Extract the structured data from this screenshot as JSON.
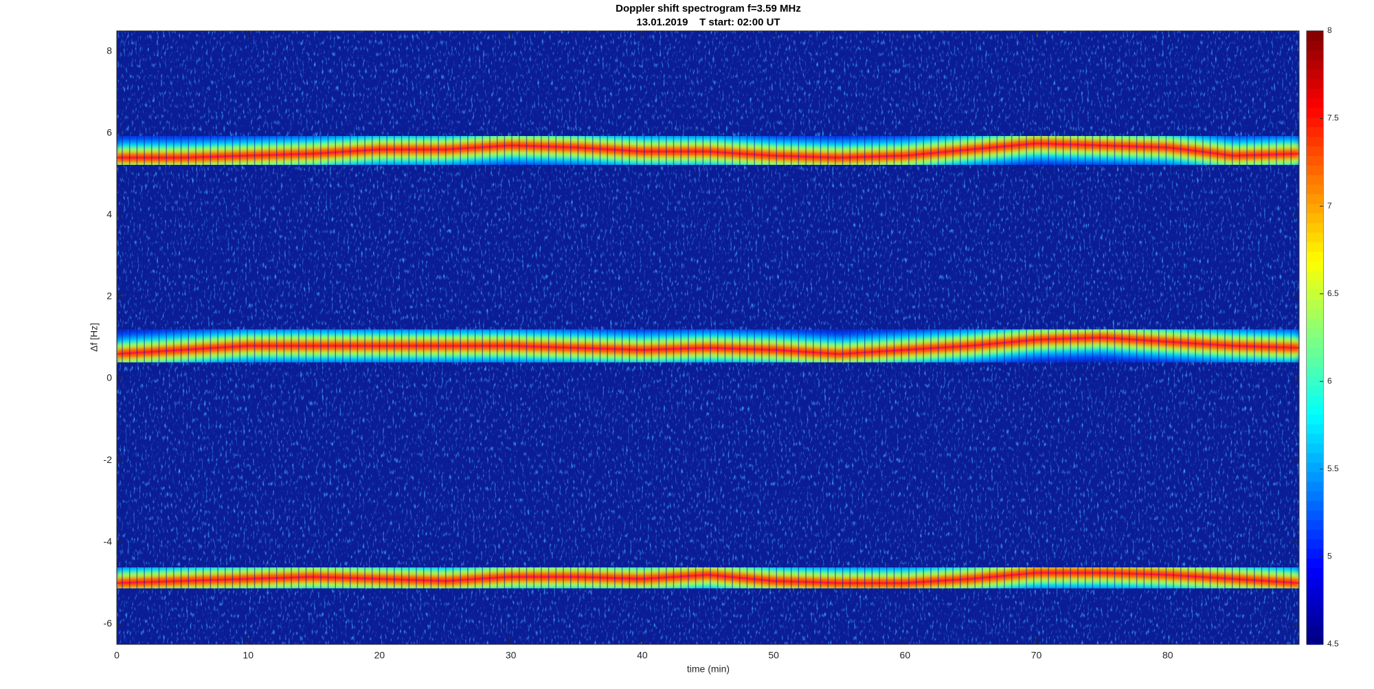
{
  "chart_data": {
    "type": "spectrogram",
    "title": "Doppler shift spectrogram f=3.59 MHz",
    "subtitle": "13.01.2019    T start: 02:00 UT",
    "xlabel": "time (min)",
    "ylabel": "Δf [Hz]",
    "x": [
      0,
      5,
      10,
      15,
      20,
      25,
      30,
      35,
      40,
      45,
      50,
      55,
      60,
      65,
      70,
      75,
      80,
      85,
      90
    ],
    "series": [
      {
        "color": "#ff1a3a",
        "values": [
          5.4,
          5.4,
          5.45,
          5.5,
          5.6,
          5.6,
          5.7,
          5.65,
          5.55,
          5.55,
          5.45,
          5.4,
          5.45,
          5.6,
          5.75,
          5.7,
          5.65,
          5.45,
          5.5
        ]
      },
      {
        "color": "#ff1a3a",
        "values": [
          0.6,
          0.7,
          0.8,
          0.8,
          0.8,
          0.8,
          0.8,
          0.75,
          0.7,
          0.75,
          0.7,
          0.6,
          0.7,
          0.8,
          0.95,
          1.0,
          0.9,
          0.8,
          0.75
        ]
      },
      {
        "color": "#ff1a3a",
        "values": [
          -5.0,
          -4.95,
          -4.9,
          -4.85,
          -4.9,
          -4.95,
          -4.85,
          -4.85,
          -4.9,
          -4.8,
          -4.95,
          -5.0,
          -5.0,
          -4.9,
          -4.75,
          -4.75,
          -4.8,
          -4.9,
          -5.0
        ]
      }
    ],
    "xlim": [
      0,
      90
    ],
    "xticks": [
      0,
      10,
      20,
      30,
      40,
      50,
      60,
      70,
      80
    ],
    "ylim": [
      -6.5,
      8.5
    ],
    "yticks": [
      -6,
      -4,
      -2,
      0,
      2,
      4,
      6,
      8
    ],
    "colorbar": {
      "colormap": "jet",
      "lim": [
        4.5,
        8
      ],
      "ticks": [
        4.5,
        5,
        5.5,
        6,
        6.5,
        7,
        7.5,
        8
      ]
    }
  }
}
